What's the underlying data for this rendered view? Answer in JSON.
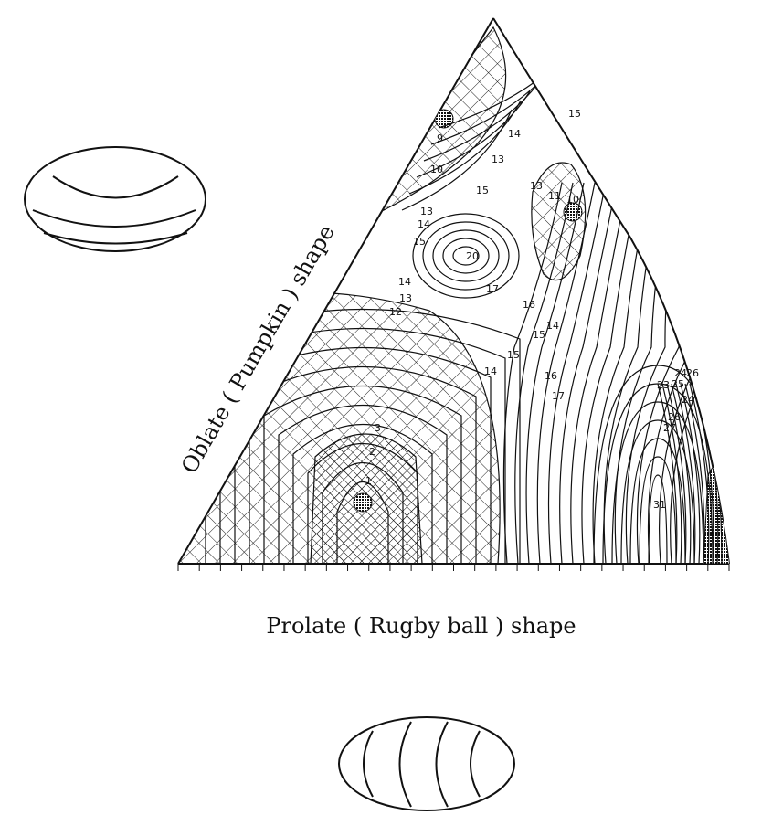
{
  "figure": {
    "axis_label_bottom": "Prolate ( Rugby  ball )  shape",
    "axis_label_left": "Oblate  ( Pumpkin )  shape"
  },
  "contour_labels": [
    {
      "text": "15"
    },
    {
      "text": "14"
    },
    {
      "text": "9"
    },
    {
      "text": "10"
    },
    {
      "text": "13"
    },
    {
      "text": "15"
    },
    {
      "text": "13"
    },
    {
      "text": "11"
    },
    {
      "text": "10"
    },
    {
      "text": "13"
    },
    {
      "text": "14"
    },
    {
      "text": "15"
    },
    {
      "text": "20"
    },
    {
      "text": "17"
    },
    {
      "text": "16"
    },
    {
      "text": "14"
    },
    {
      "text": "13"
    },
    {
      "text": "12"
    },
    {
      "text": "14"
    },
    {
      "text": "15"
    },
    {
      "text": "15"
    },
    {
      "text": "14"
    },
    {
      "text": "16"
    },
    {
      "text": "17"
    },
    {
      "text": "3"
    },
    {
      "text": "2"
    },
    {
      "text": "1"
    },
    {
      "text": "24"
    },
    {
      "text": "26"
    },
    {
      "text": "23"
    },
    {
      "text": "25"
    },
    {
      "text": "24"
    },
    {
      "text": "26"
    },
    {
      "text": "27"
    },
    {
      "text": "31"
    }
  ]
}
